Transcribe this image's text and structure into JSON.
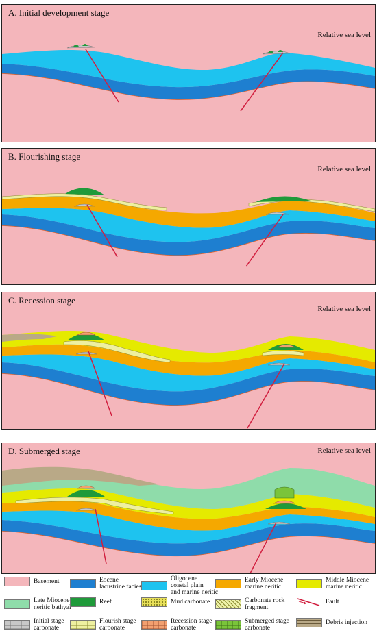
{
  "panels": [
    {
      "key": "A",
      "title": "A.  Initial development stage",
      "sea_level": "Relative sea level"
    },
    {
      "key": "B",
      "title": "B.  Flourishing stage",
      "sea_level": "Relative sea level"
    },
    {
      "key": "C",
      "title": "C.  Recession stage",
      "sea_level": "Relative sea level"
    },
    {
      "key": "D",
      "title": "D.  Submerged stage",
      "sea_level": "Relative sea level"
    }
  ],
  "legend": [
    {
      "label": "Basement",
      "color": "#f4b6bb",
      "pattern": "solid"
    },
    {
      "label": "Eocene\nlacustrine facies",
      "color": "#1e7fd0",
      "pattern": "solid"
    },
    {
      "label": "Oligocene\ncoastal plain\nand marine neritic",
      "color": "#1ec3ef",
      "pattern": "solid"
    },
    {
      "label": "Early Miocene\nmarine neritic",
      "color": "#f5a800",
      "pattern": "solid"
    },
    {
      "label": "Middle Miocene\nmarine neritic",
      "color": "#e5ea00",
      "pattern": "solid"
    },
    {
      "label": "Late Miocene\nneritic bathyal",
      "color": "#8fdcaa",
      "pattern": "solid"
    },
    {
      "label": "Reef",
      "color": "#1f9a3a",
      "pattern": "solid"
    },
    {
      "label": "Mud carbonate",
      "color": "#e8e05a",
      "pattern": "dots"
    },
    {
      "label": "Carbonate rock\nfragment",
      "color": "#eef2a8",
      "pattern": "hatch"
    },
    {
      "label": "Fault",
      "color": "#d11f3f",
      "pattern": "fault"
    },
    {
      "label": "Initial  stage\ncarbonate",
      "color": "#c8c8c8",
      "pattern": "brick"
    },
    {
      "label": "Flourish  stage\ncarbonate",
      "color": "#eef0a0",
      "pattern": "brick"
    },
    {
      "label": "Recession  stage\ncarbonate",
      "color": "#f2a070",
      "pattern": "brick"
    },
    {
      "label": "Submerged stage\ncarbonate",
      "color": "#7ac43a",
      "pattern": "brick"
    },
    {
      "label": "Debris injection",
      "color": "#b9a987",
      "pattern": "debris"
    }
  ],
  "colors": {
    "basement": "#f4b6bb",
    "eocene": "#1e7fd0",
    "oligocene": "#1ec3ef",
    "early_miocene": "#f5a800",
    "middle_miocene": "#e5ea00",
    "late_miocene": "#8fdcaa",
    "reef": "#1f9a3a",
    "fault": "#d11f3f",
    "contact": "#e0602a",
    "debris": "#b9a987"
  }
}
